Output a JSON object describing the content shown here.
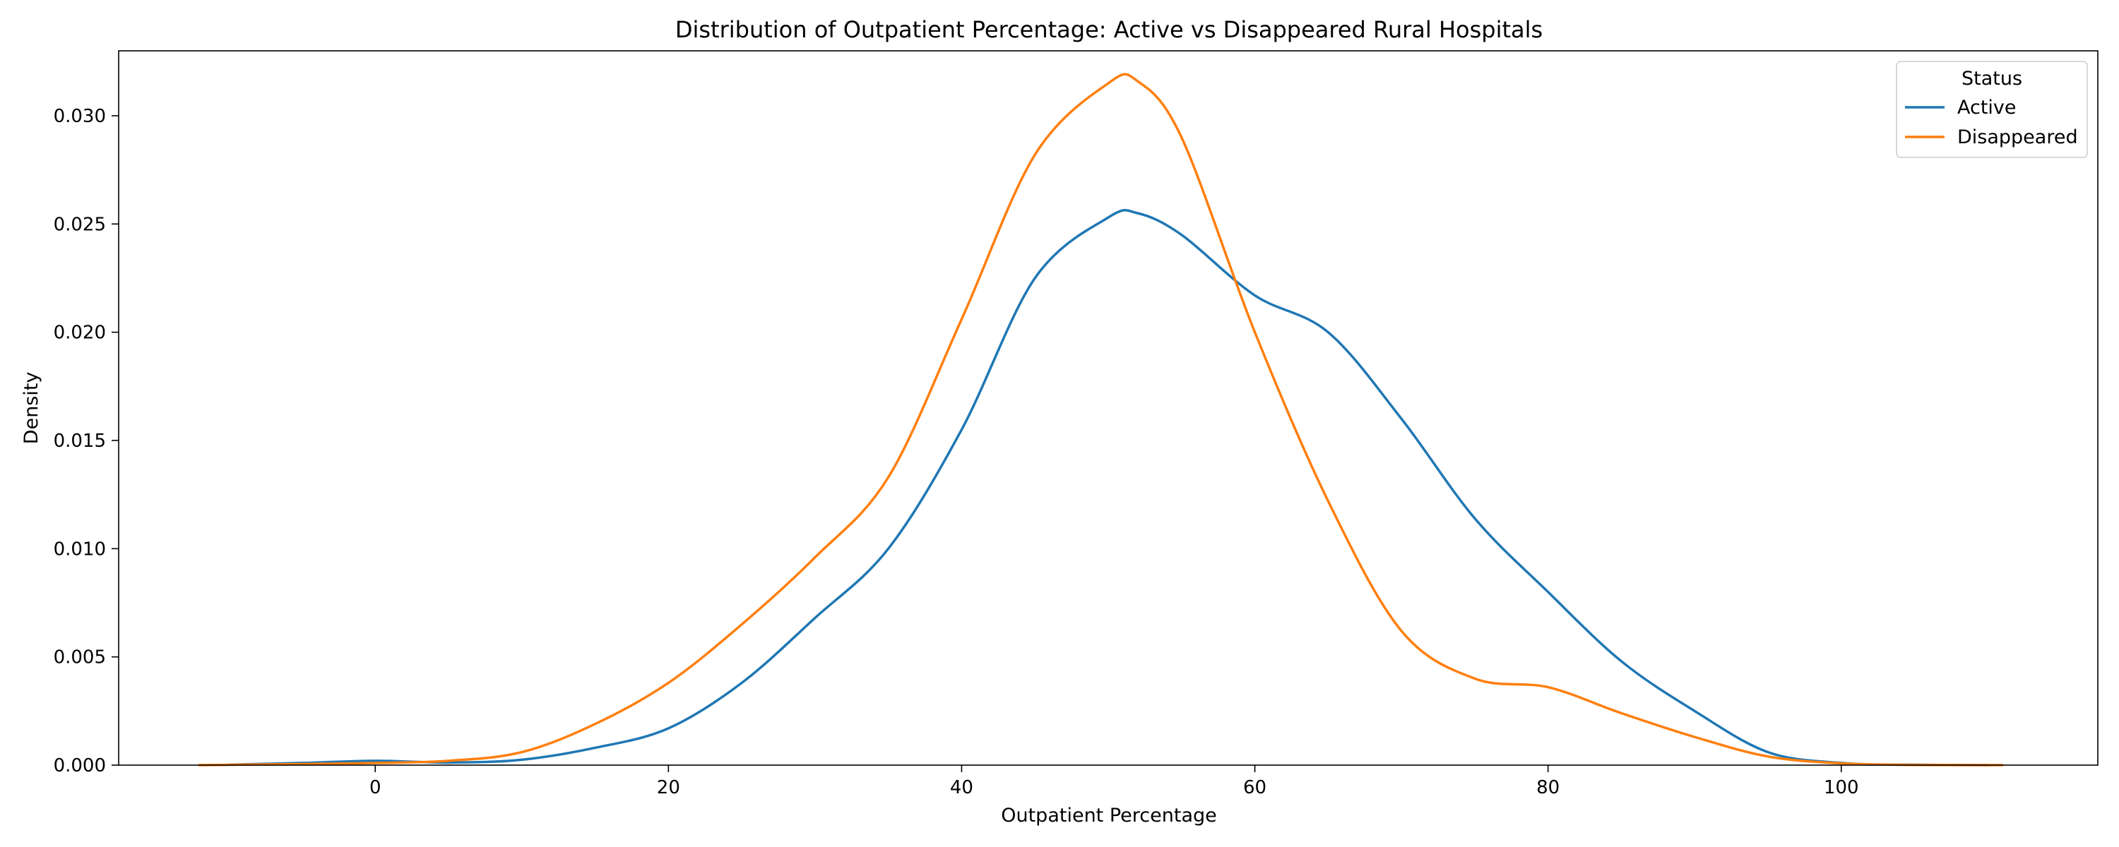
{
  "chart_data": {
    "type": "line",
    "title": "Distribution of Outpatient Percentage: Active vs Disappeared Rural Hospitals",
    "xlabel": "Outpatient Percentage",
    "ylabel": "Density",
    "xlim": [
      -17.5,
      117.5
    ],
    "ylim": [
      0,
      0.033
    ],
    "xticks": [
      {
        "value": 0,
        "label": "0"
      },
      {
        "value": 20,
        "label": "20"
      },
      {
        "value": 40,
        "label": "40"
      },
      {
        "value": 60,
        "label": "60"
      },
      {
        "value": 80,
        "label": "80"
      },
      {
        "value": 100,
        "label": "100"
      }
    ],
    "yticks": [
      {
        "value": 0.0,
        "label": "0.000"
      },
      {
        "value": 0.005,
        "label": "0.005"
      },
      {
        "value": 0.01,
        "label": "0.010"
      },
      {
        "value": 0.015,
        "label": "0.015"
      },
      {
        "value": 0.02,
        "label": "0.020"
      },
      {
        "value": 0.025,
        "label": "0.025"
      },
      {
        "value": 0.03,
        "label": "0.030"
      }
    ],
    "grid": false,
    "legend": {
      "title": "Status",
      "placement": "top-right"
    },
    "series": [
      {
        "name": "Active",
        "color": "#1f77b4",
        "x": [
          -10,
          -5,
          0,
          5,
          10,
          15,
          20,
          25,
          30,
          35,
          40,
          45,
          50,
          52,
          55,
          60,
          65,
          70,
          75,
          80,
          85,
          90,
          95,
          100,
          105,
          110
        ],
        "y": [
          2e-05,
          0.0001,
          0.0002,
          0.00012,
          0.00025,
          0.0008,
          0.0017,
          0.0038,
          0.0068,
          0.01,
          0.0155,
          0.0225,
          0.0253,
          0.0255,
          0.0245,
          0.0217,
          0.02,
          0.016,
          0.0114,
          0.008,
          0.0048,
          0.0025,
          0.0006,
          0.0001,
          2e-05,
          0.0
        ]
      },
      {
        "name": "Disappeared",
        "color": "#ff7f0e",
        "x": [
          -12,
          -5,
          0,
          5,
          10,
          15,
          20,
          25,
          30,
          35,
          40,
          45,
          50,
          52,
          55,
          60,
          65,
          70,
          75,
          80,
          85,
          90,
          95,
          100,
          105,
          111
        ],
        "y": [
          0.0,
          5e-05,
          0.0001,
          0.0002,
          0.0006,
          0.0019,
          0.0038,
          0.0065,
          0.0096,
          0.0133,
          0.0206,
          0.0282,
          0.0315,
          0.0316,
          0.029,
          0.02,
          0.0122,
          0.0062,
          0.004,
          0.0036,
          0.0024,
          0.0013,
          0.0004,
          8e-05,
          1e-05,
          0.0
        ]
      }
    ]
  }
}
